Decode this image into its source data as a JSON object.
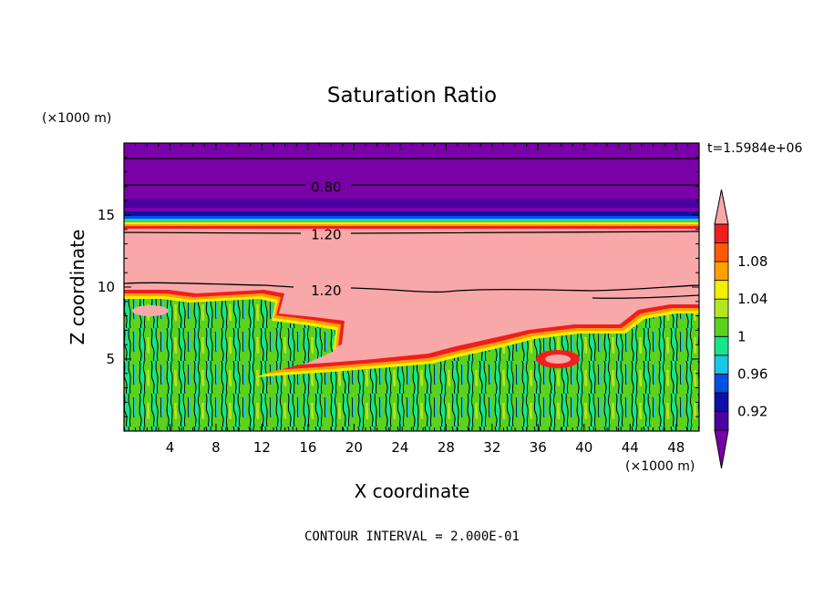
{
  "chart_data": {
    "type": "heatmap",
    "title": "Saturation Ratio",
    "xlabel": "X coordinate",
    "ylabel": "Z coordinate",
    "x_units": "(×1000 m)",
    "y_units": "(×1000 m)",
    "xlim": [
      0,
      50
    ],
    "ylim": [
      0,
      20
    ],
    "x_ticks": [
      "4",
      "8",
      "12",
      "16",
      "20",
      "24",
      "28",
      "32",
      "36",
      "40",
      "44",
      "48"
    ],
    "y_ticks": [
      "5",
      "10",
      "15"
    ],
    "time_label": "t=1.5984e+06",
    "footer": "CONTOUR INTERVAL = 2.000E-01",
    "contour_labels": [
      {
        "text": "0.80",
        "x": 17.5,
        "z": 17.0
      },
      {
        "text": "1.20",
        "x": 17.5,
        "z": 13.7
      },
      {
        "text": "1.20",
        "x": 17.5,
        "z": 9.8
      }
    ],
    "colorbar": {
      "labels": [
        "1.08",
        "1.04",
        "1",
        "0.96",
        "0.92"
      ],
      "bins": [
        {
          "range": "<0.90",
          "color": "#7a00a8"
        },
        {
          "range": "0.90-0.92",
          "color": "#4b00a0"
        },
        {
          "range": "0.92-0.94",
          "color": "#0f0fa8"
        },
        {
          "range": "0.94-0.96",
          "color": "#0050e6"
        },
        {
          "range": "0.96-0.98",
          "color": "#18c8e6"
        },
        {
          "range": "0.98-1.00",
          "color": "#14e68c"
        },
        {
          "range": "1.00-1.02",
          "color": "#5ad21e"
        },
        {
          "range": "1.02-1.04",
          "color": "#b4e61e"
        },
        {
          "range": "1.04-1.06",
          "color": "#f0f000"
        },
        {
          "range": "1.06-1.08",
          "color": "#ffa000"
        },
        {
          "range": "1.08-1.10",
          "color": "#ff5a00"
        },
        {
          "range": "1.10-1.12",
          "color": "#f01e1e"
        },
        {
          "range": ">1.12",
          "color": "#f8a8a8"
        }
      ]
    }
  }
}
